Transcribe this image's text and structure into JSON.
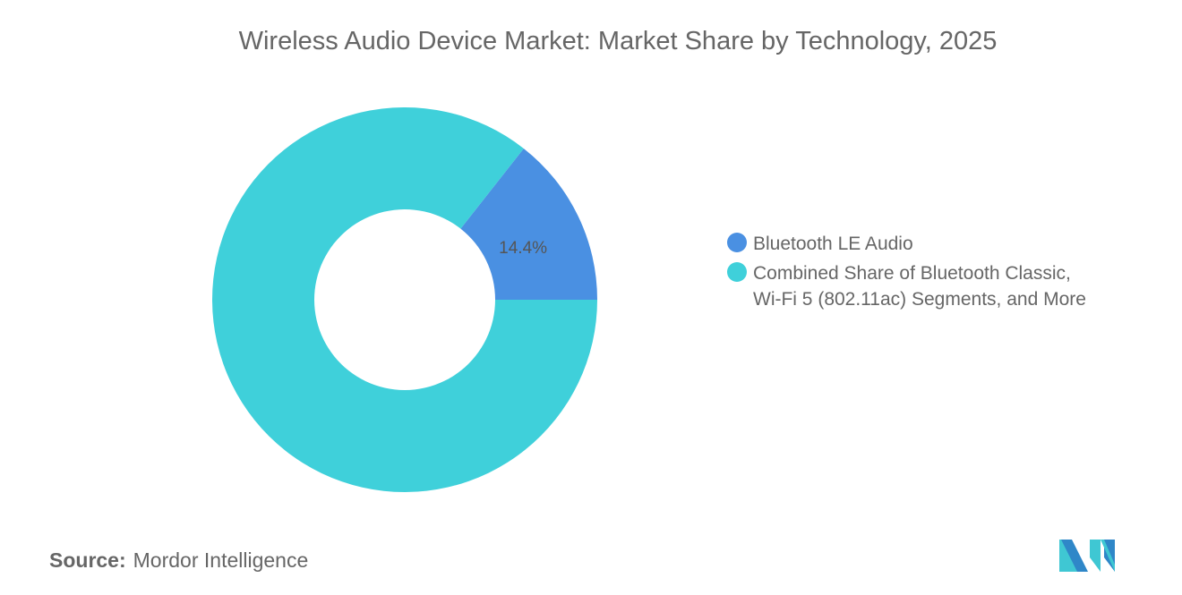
{
  "chart_data": {
    "type": "pie",
    "variant": "donut",
    "title": "Wireless Audio Device Market: Market Share by Technology, 2025",
    "categories": [
      "Bluetooth LE Audio",
      "Combined Share of Bluetooth Classic, Wi-Fi 5 (802.11ac) Segments, and More"
    ],
    "values": [
      14.4,
      85.6
    ],
    "data_labels": [
      "14.4%",
      ""
    ],
    "colors": [
      "#4a90e2",
      "#3fd0da"
    ],
    "legend_position": "right"
  },
  "source": {
    "label": "Source:",
    "value": "Mordor Intelligence"
  },
  "logo": {
    "colors": [
      "#2f87c8",
      "#3fc7d3"
    ]
  }
}
